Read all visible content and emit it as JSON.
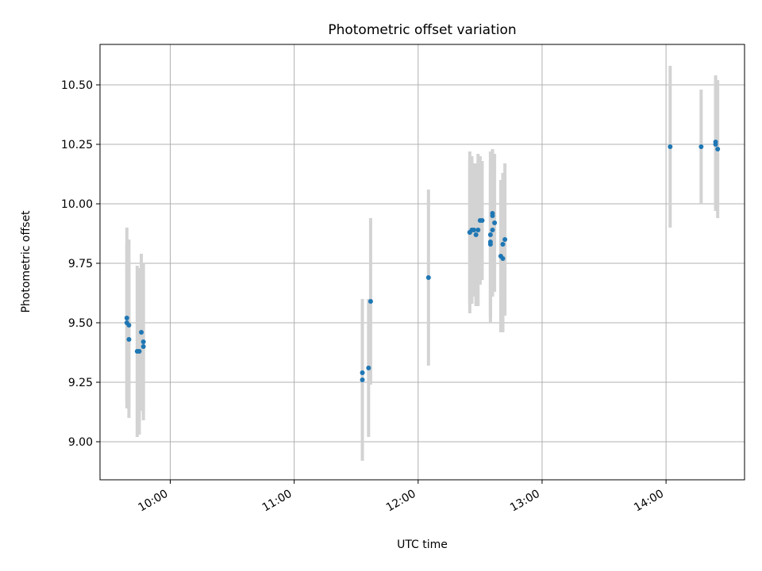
{
  "chart_data": {
    "type": "scatter",
    "title": "Photometric offset variation",
    "xlabel": "UTC time",
    "ylabel": "Photometric offset",
    "x_axis_type": "time",
    "xlim": [
      "09:26",
      "14:38"
    ],
    "ylim": [
      8.84,
      10.67
    ],
    "x_ticks": [
      {
        "value": "10:00",
        "label": "10:00"
      },
      {
        "value": "11:00",
        "label": "11:00"
      },
      {
        "value": "12:00",
        "label": "12:00"
      },
      {
        "value": "13:00",
        "label": "13:00"
      },
      {
        "value": "14:00",
        "label": "14:00"
      }
    ],
    "y_ticks": [
      {
        "value": 9.0,
        "label": "9.00"
      },
      {
        "value": 9.25,
        "label": "9.25"
      },
      {
        "value": 9.5,
        "label": "9.50"
      },
      {
        "value": 9.75,
        "label": "9.75"
      },
      {
        "value": 10.0,
        "label": "10.00"
      },
      {
        "value": 10.25,
        "label": "10.25"
      },
      {
        "value": 10.5,
        "label": "10.50"
      }
    ],
    "grid": true,
    "legend": "none",
    "colors": {
      "points": "#1f77b4",
      "error_bars": "#d3d3d3",
      "grid": "#b0b0b0"
    },
    "points": [
      {
        "x": "09:39",
        "y": 9.52,
        "err": 0.38
      },
      {
        "x": "09:39",
        "y": 9.5,
        "err": 0.33
      },
      {
        "x": "09:40",
        "y": 9.49,
        "err": 0.36
      },
      {
        "x": "09:40",
        "y": 9.43,
        "err": 0.33
      },
      {
        "x": "09:44",
        "y": 9.38,
        "err": 0.36
      },
      {
        "x": "09:45",
        "y": 9.38,
        "err": 0.35
      },
      {
        "x": "09:46",
        "y": 9.46,
        "err": 0.33
      },
      {
        "x": "09:47",
        "y": 9.42,
        "err": 0.33
      },
      {
        "x": "09:47",
        "y": 9.4,
        "err": 0.28
      },
      {
        "x": "11:33",
        "y": 9.29,
        "err": 0.26
      },
      {
        "x": "11:33",
        "y": 9.26,
        "err": 0.34
      },
      {
        "x": "11:36",
        "y": 9.31,
        "err": 0.29
      },
      {
        "x": "11:37",
        "y": 9.59,
        "err": 0.35
      },
      {
        "x": "12:05",
        "y": 9.69,
        "err": 0.37
      },
      {
        "x": "12:25",
        "y": 9.88,
        "err": 0.34
      },
      {
        "x": "12:25",
        "y": 9.88,
        "err": 0.3
      },
      {
        "x": "12:26",
        "y": 9.89,
        "err": 0.31
      },
      {
        "x": "12:27",
        "y": 9.89,
        "err": 0.28
      },
      {
        "x": "12:28",
        "y": 9.87,
        "err": 0.3
      },
      {
        "x": "12:29",
        "y": 9.89,
        "err": 0.32
      },
      {
        "x": "12:30",
        "y": 9.93,
        "err": 0.27
      },
      {
        "x": "12:31",
        "y": 9.93,
        "err": 0.25
      },
      {
        "x": "12:35",
        "y": 9.87,
        "err": 0.35
      },
      {
        "x": "12:35",
        "y": 9.83,
        "err": 0.3
      },
      {
        "x": "12:35",
        "y": 9.84,
        "err": 0.34
      },
      {
        "x": "12:36",
        "y": 9.89,
        "err": 0.28
      },
      {
        "x": "12:36",
        "y": 9.96,
        "err": 0.27
      },
      {
        "x": "12:36",
        "y": 9.95,
        "err": 0.28
      },
      {
        "x": "12:37",
        "y": 9.92,
        "err": 0.29
      },
      {
        "x": "12:40",
        "y": 9.78,
        "err": 0.32
      },
      {
        "x": "12:41",
        "y": 9.77,
        "err": 0.31
      },
      {
        "x": "12:41",
        "y": 9.83,
        "err": 0.3
      },
      {
        "x": "12:42",
        "y": 9.85,
        "err": 0.32
      },
      {
        "x": "14:02",
        "y": 10.24,
        "err": 0.34
      },
      {
        "x": "14:17",
        "y": 10.24,
        "err": 0.24
      },
      {
        "x": "14:24",
        "y": 10.26,
        "err": 0.28
      },
      {
        "x": "14:24",
        "y": 10.25,
        "err": 0.28
      },
      {
        "x": "14:25",
        "y": 10.23,
        "err": 0.29
      }
    ]
  }
}
